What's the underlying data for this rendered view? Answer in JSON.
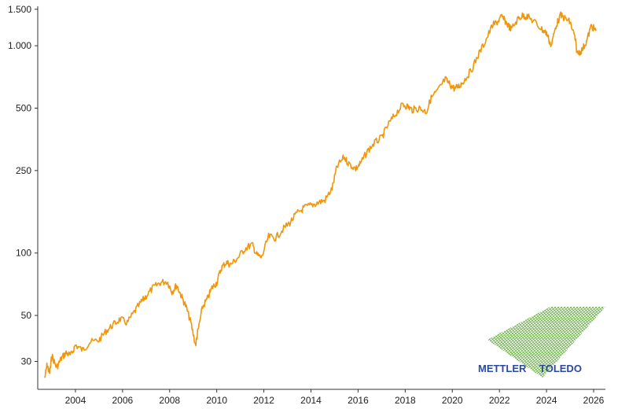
{
  "chart_data": {
    "type": "line",
    "title": "",
    "xlabel": "",
    "ylabel": "",
    "y_scale": "log",
    "xlim": [
      2002.4,
      2026.5
    ],
    "ylim": [
      22,
      1550
    ],
    "y_ticks": [
      {
        "value": 30,
        "label": "30"
      },
      {
        "value": 50,
        "label": "50"
      },
      {
        "value": 100,
        "label": "100"
      },
      {
        "value": 250,
        "label": "250"
      },
      {
        "value": 500,
        "label": "500"
      },
      {
        "value": 1000,
        "label": "1.000"
      },
      {
        "value": 1500,
        "label": "1.500"
      }
    ],
    "x_ticks": [
      {
        "value": 2004,
        "label": "2004"
      },
      {
        "value": 2006,
        "label": "2006"
      },
      {
        "value": 2008,
        "label": "2008"
      },
      {
        "value": 2010,
        "label": "2010"
      },
      {
        "value": 2012,
        "label": "2012"
      },
      {
        "value": 2014,
        "label": "2014"
      },
      {
        "value": 2016,
        "label": "2016"
      },
      {
        "value": 2018,
        "label": "2018"
      },
      {
        "value": 2020,
        "label": "2020"
      },
      {
        "value": 2022,
        "label": "2022"
      },
      {
        "value": 2024,
        "label": "2024"
      },
      {
        "value": 2026,
        "label": "2026"
      }
    ],
    "grid": false,
    "legend": "none",
    "series": [
      {
        "color": "#f0960a",
        "x": [
          2002.7,
          2002.8,
          2002.9,
          2003.0,
          2003.2,
          2003.4,
          2003.6,
          2003.8,
          2004.0,
          2004.3,
          2004.6,
          2005.0,
          2005.3,
          2005.6,
          2005.9,
          2006.2,
          2006.5,
          2006.8,
          2007.0,
          2007.3,
          2007.6,
          2007.9,
          2008.1,
          2008.3,
          2008.5,
          2008.7,
          2008.9,
          2009.1,
          2009.2,
          2009.4,
          2009.6,
          2009.8,
          2010.0,
          2010.2,
          2010.4,
          2010.6,
          2010.9,
          2011.2,
          2011.5,
          2011.7,
          2011.9,
          2012.2,
          2012.5,
          2012.8,
          2013.1,
          2013.4,
          2013.7,
          2014.0,
          2014.3,
          2014.6,
          2014.9,
          2015.1,
          2015.4,
          2015.6,
          2015.9,
          2016.1,
          2016.4,
          2016.7,
          2017.0,
          2017.3,
          2017.6,
          2017.9,
          2018.1,
          2018.3,
          2018.6,
          2018.9,
          2019.1,
          2019.4,
          2019.7,
          2019.9,
          2020.1,
          2020.3,
          2020.5,
          2020.8,
          2021.1,
          2021.4,
          2021.7,
          2021.9,
          2022.1,
          2022.3,
          2022.5,
          2022.8,
          2023.0,
          2023.2,
          2023.5,
          2023.8,
          2024.0,
          2024.2,
          2024.4,
          2024.6,
          2024.8,
          2025.0,
          2025.2,
          2025.3,
          2025.5,
          2025.7,
          2025.9,
          2026.1
        ],
        "y": [
          25,
          29,
          26,
          32,
          28,
          31,
          33,
          32,
          36,
          34,
          37,
          38,
          42,
          45,
          48,
          46,
          52,
          58,
          62,
          68,
          72,
          73,
          65,
          70,
          62,
          55,
          46,
          36,
          42,
          55,
          60,
          68,
          72,
          85,
          90,
          88,
          95,
          105,
          110,
          98,
          95,
          120,
          118,
          130,
          140,
          155,
          165,
          170,
          175,
          180,
          205,
          260,
          290,
          270,
          255,
          270,
          310,
          340,
          360,
          420,
          470,
          520,
          510,
          490,
          500,
          480,
          560,
          610,
          690,
          650,
          620,
          640,
          680,
          760,
          900,
          1050,
          1250,
          1300,
          1380,
          1290,
          1200,
          1350,
          1400,
          1380,
          1300,
          1200,
          1150,
          1000,
          1250,
          1400,
          1350,
          1300,
          1100,
          920,
          950,
          1050,
          1250,
          1180
        ]
      }
    ]
  },
  "logo": {
    "left_word": "METTLER",
    "right_word": "TOLEDO",
    "text_color": "#2a4aa0",
    "hatch_color": "#5aa832"
  }
}
